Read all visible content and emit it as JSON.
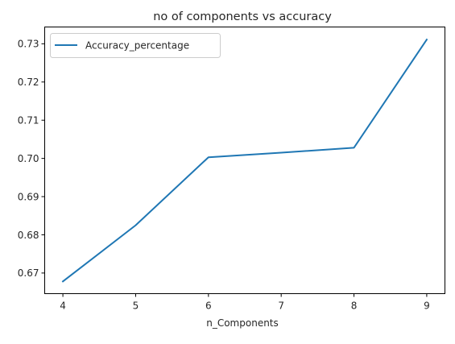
{
  "chart_data": {
    "type": "line",
    "title": "no of components vs accuracy",
    "xlabel": "n_Components",
    "ylabel": "",
    "x": [
      4,
      5,
      6,
      7,
      8,
      9
    ],
    "series": [
      {
        "name": "Accuracy_percentage",
        "values": [
          0.6678,
          0.6825,
          0.7003,
          0.7015,
          0.7028,
          0.7311
        ],
        "color": "#1f77b4"
      }
    ],
    "xticks": [
      "4",
      "5",
      "6",
      "7",
      "8",
      "9"
    ],
    "yticks": [
      "0.67",
      "0.68",
      "0.69",
      "0.70",
      "0.71",
      "0.72",
      "0.73"
    ],
    "xlim": [
      3.75,
      9.25
    ],
    "ylim": [
      0.6646,
      0.7344
    ],
    "grid": false,
    "legend_position": "top-left"
  }
}
